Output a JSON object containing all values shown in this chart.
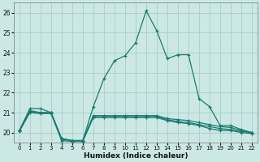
{
  "xlabel": "Humidex (Indice chaleur)",
  "background_color": "#cce8e4",
  "grid_color": "#aaccca",
  "line_color": "#1a7a6e",
  "xlim": [
    -0.5,
    22.5
  ],
  "ylim": [
    19.5,
    26.5
  ],
  "yticks": [
    20,
    21,
    22,
    23,
    24,
    25,
    26
  ],
  "xticks": [
    0,
    1,
    2,
    3,
    4,
    5,
    6,
    7,
    8,
    9,
    10,
    11,
    12,
    13,
    14,
    15,
    16,
    17,
    18,
    19,
    20,
    21,
    22
  ],
  "series": [
    [
      20.1,
      21.2,
      21.2,
      21.0,
      19.7,
      19.6,
      19.6,
      21.3,
      22.7,
      23.6,
      23.85,
      24.5,
      26.1,
      25.1,
      23.7,
      23.9,
      23.9,
      21.7,
      21.3,
      20.35,
      20.35,
      20.15,
      20.0
    ],
    [
      20.1,
      21.1,
      21.0,
      21.0,
      19.7,
      19.6,
      19.6,
      20.85,
      20.85,
      20.85,
      20.85,
      20.85,
      20.85,
      20.85,
      20.7,
      20.65,
      20.6,
      20.5,
      20.4,
      20.3,
      20.25,
      20.1,
      20.0
    ],
    [
      20.1,
      21.05,
      21.0,
      21.0,
      19.65,
      19.6,
      19.6,
      20.8,
      20.8,
      20.8,
      20.8,
      20.8,
      20.8,
      20.8,
      20.65,
      20.55,
      20.5,
      20.4,
      20.3,
      20.2,
      20.15,
      20.05,
      20.0
    ],
    [
      20.05,
      21.0,
      20.95,
      20.95,
      19.6,
      19.55,
      19.55,
      20.75,
      20.75,
      20.75,
      20.75,
      20.75,
      20.75,
      20.75,
      20.6,
      20.5,
      20.45,
      20.35,
      20.2,
      20.1,
      20.1,
      20.0,
      19.95
    ]
  ]
}
